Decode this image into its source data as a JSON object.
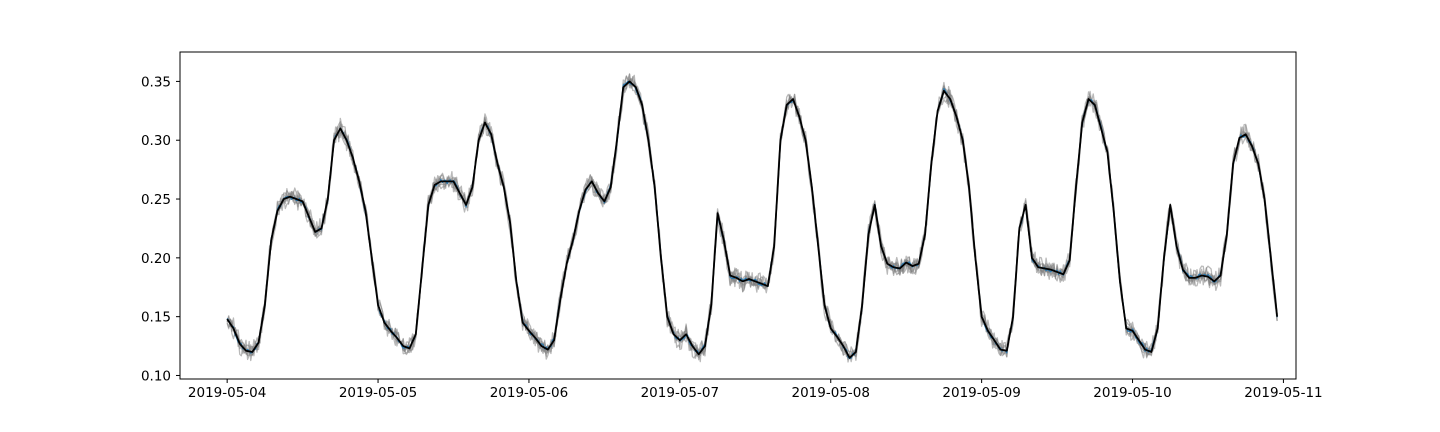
{
  "chart_data": {
    "type": "line",
    "title": "",
    "xlabel": "",
    "ylabel": "",
    "legend": "none",
    "grid": false,
    "xlim": [
      "2019-05-03T16:30",
      "2019-05-11T02:00"
    ],
    "ylim": [
      0.097,
      0.375
    ],
    "x_ticks": [
      "2019-05-04",
      "2019-05-05",
      "2019-05-06",
      "2019-05-07",
      "2019-05-08",
      "2019-05-09",
      "2019-05-10",
      "2019-05-11"
    ],
    "y_ticks": [
      "0.10",
      "0.15",
      "0.20",
      "0.25",
      "0.30",
      "0.35"
    ],
    "main_series_color": "#000000",
    "accent_series_color": "#1f77b4",
    "sample_series_color": "#808080",
    "sample_series_count": 7,
    "mean_series": {
      "x": [
        "2019-05-04T00:00",
        "2019-05-04T01:00",
        "2019-05-04T02:00",
        "2019-05-04T03:00",
        "2019-05-04T04:00",
        "2019-05-04T05:00",
        "2019-05-04T06:00",
        "2019-05-04T07:00",
        "2019-05-04T08:00",
        "2019-05-04T09:00",
        "2019-05-04T10:00",
        "2019-05-04T11:00",
        "2019-05-04T12:00",
        "2019-05-04T13:00",
        "2019-05-04T14:00",
        "2019-05-04T15:00",
        "2019-05-04T16:00",
        "2019-05-04T17:00",
        "2019-05-04T18:00",
        "2019-05-04T19:00",
        "2019-05-04T20:00",
        "2019-05-04T21:00",
        "2019-05-04T22:00",
        "2019-05-04T23:00",
        "2019-05-05T00:00",
        "2019-05-05T01:00",
        "2019-05-05T02:00",
        "2019-05-05T03:00",
        "2019-05-05T04:00",
        "2019-05-05T05:00",
        "2019-05-05T06:00",
        "2019-05-05T07:00",
        "2019-05-05T08:00",
        "2019-05-05T09:00",
        "2019-05-05T10:00",
        "2019-05-05T11:00",
        "2019-05-05T12:00",
        "2019-05-05T13:00",
        "2019-05-05T14:00",
        "2019-05-05T15:00",
        "2019-05-05T16:00",
        "2019-05-05T17:00",
        "2019-05-05T18:00",
        "2019-05-05T19:00",
        "2019-05-05T20:00",
        "2019-05-05T21:00",
        "2019-05-05T22:00",
        "2019-05-05T23:00",
        "2019-05-06T00:00",
        "2019-05-06T01:00",
        "2019-05-06T02:00",
        "2019-05-06T03:00",
        "2019-05-06T04:00",
        "2019-05-06T05:00",
        "2019-05-06T06:00",
        "2019-05-06T07:00",
        "2019-05-06T08:00",
        "2019-05-06T09:00",
        "2019-05-06T10:00",
        "2019-05-06T11:00",
        "2019-05-06T12:00",
        "2019-05-06T13:00",
        "2019-05-06T14:00",
        "2019-05-06T15:00",
        "2019-05-06T16:00",
        "2019-05-06T17:00",
        "2019-05-06T18:00",
        "2019-05-06T19:00",
        "2019-05-06T20:00",
        "2019-05-06T21:00",
        "2019-05-06T22:00",
        "2019-05-06T23:00",
        "2019-05-07T00:00",
        "2019-05-07T01:00",
        "2019-05-07T02:00",
        "2019-05-07T03:00",
        "2019-05-07T04:00",
        "2019-05-07T05:00",
        "2019-05-07T06:00",
        "2019-05-07T07:00",
        "2019-05-07T08:00",
        "2019-05-07T09:00",
        "2019-05-07T10:00",
        "2019-05-07T11:00",
        "2019-05-07T12:00",
        "2019-05-07T13:00",
        "2019-05-07T14:00",
        "2019-05-07T15:00",
        "2019-05-07T16:00",
        "2019-05-07T17:00",
        "2019-05-07T18:00",
        "2019-05-07T19:00",
        "2019-05-07T20:00",
        "2019-05-07T21:00",
        "2019-05-07T22:00",
        "2019-05-07T23:00",
        "2019-05-08T00:00",
        "2019-05-08T01:00",
        "2019-05-08T02:00",
        "2019-05-08T03:00",
        "2019-05-08T04:00",
        "2019-05-08T05:00",
        "2019-05-08T06:00",
        "2019-05-08T07:00",
        "2019-05-08T08:00",
        "2019-05-08T09:00",
        "2019-05-08T10:00",
        "2019-05-08T11:00",
        "2019-05-08T12:00",
        "2019-05-08T13:00",
        "2019-05-08T14:00",
        "2019-05-08T15:00",
        "2019-05-08T16:00",
        "2019-05-08T17:00",
        "2019-05-08T18:00",
        "2019-05-08T19:00",
        "2019-05-08T20:00",
        "2019-05-08T21:00",
        "2019-05-08T22:00",
        "2019-05-08T23:00",
        "2019-05-09T00:00",
        "2019-05-09T01:00",
        "2019-05-09T02:00",
        "2019-05-09T03:00",
        "2019-05-09T04:00",
        "2019-05-09T05:00",
        "2019-05-09T06:00",
        "2019-05-09T07:00",
        "2019-05-09T08:00",
        "2019-05-09T09:00",
        "2019-05-09T10:00",
        "2019-05-09T11:00",
        "2019-05-09T12:00",
        "2019-05-09T13:00",
        "2019-05-09T14:00",
        "2019-05-09T15:00",
        "2019-05-09T16:00",
        "2019-05-09T17:00",
        "2019-05-09T18:00",
        "2019-05-09T19:00",
        "2019-05-09T20:00",
        "2019-05-09T21:00",
        "2019-05-09T22:00",
        "2019-05-09T23:00",
        "2019-05-10T00:00",
        "2019-05-10T01:00",
        "2019-05-10T02:00",
        "2019-05-10T03:00",
        "2019-05-10T04:00",
        "2019-05-10T05:00",
        "2019-05-10T06:00",
        "2019-05-10T07:00",
        "2019-05-10T08:00",
        "2019-05-10T09:00",
        "2019-05-10T10:00",
        "2019-05-10T11:00",
        "2019-05-10T12:00",
        "2019-05-10T13:00",
        "2019-05-10T14:00",
        "2019-05-10T15:00",
        "2019-05-10T16:00",
        "2019-05-10T17:00",
        "2019-05-10T18:00",
        "2019-05-10T19:00",
        "2019-05-10T20:00",
        "2019-05-10T21:00",
        "2019-05-10T22:00",
        "2019-05-10T23:00"
      ],
      "y": [
        0.148,
        0.14,
        0.127,
        0.121,
        0.12,
        0.128,
        0.16,
        0.215,
        0.24,
        0.25,
        0.252,
        0.25,
        0.248,
        0.235,
        0.222,
        0.225,
        0.25,
        0.3,
        0.31,
        0.3,
        0.285,
        0.265,
        0.24,
        0.2,
        0.16,
        0.145,
        0.138,
        0.132,
        0.125,
        0.123,
        0.135,
        0.19,
        0.245,
        0.262,
        0.265,
        0.265,
        0.265,
        0.255,
        0.245,
        0.26,
        0.3,
        0.315,
        0.305,
        0.28,
        0.26,
        0.23,
        0.18,
        0.145,
        0.138,
        0.132,
        0.125,
        0.122,
        0.13,
        0.165,
        0.195,
        0.215,
        0.24,
        0.258,
        0.265,
        0.255,
        0.248,
        0.26,
        0.3,
        0.345,
        0.35,
        0.345,
        0.33,
        0.3,
        0.26,
        0.2,
        0.15,
        0.135,
        0.13,
        0.135,
        0.125,
        0.118,
        0.125,
        0.16,
        0.238,
        0.215,
        0.185,
        0.183,
        0.18,
        0.182,
        0.18,
        0.178,
        0.176,
        0.21,
        0.3,
        0.33,
        0.335,
        0.32,
        0.3,
        0.26,
        0.21,
        0.16,
        0.14,
        0.133,
        0.125,
        0.115,
        0.12,
        0.16,
        0.22,
        0.245,
        0.21,
        0.195,
        0.192,
        0.191,
        0.196,
        0.193,
        0.195,
        0.22,
        0.28,
        0.325,
        0.342,
        0.335,
        0.32,
        0.3,
        0.26,
        0.2,
        0.15,
        0.138,
        0.13,
        0.122,
        0.121,
        0.15,
        0.225,
        0.245,
        0.2,
        0.192,
        0.191,
        0.19,
        0.188,
        0.186,
        0.198,
        0.26,
        0.315,
        0.335,
        0.33,
        0.31,
        0.29,
        0.24,
        0.18,
        0.14,
        0.138,
        0.13,
        0.122,
        0.12,
        0.14,
        0.2,
        0.245,
        0.21,
        0.19,
        0.183,
        0.183,
        0.185,
        0.184,
        0.18,
        0.185,
        0.22,
        0.28,
        0.302,
        0.305,
        0.295,
        0.28,
        0.25,
        0.2,
        0.15
      ]
    }
  }
}
